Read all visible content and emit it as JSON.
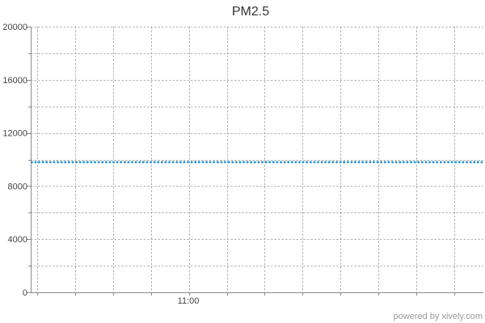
{
  "chart_data": {
    "type": "line",
    "title": "PM2.5",
    "xlabel": "",
    "ylabel": "",
    "ylim": [
      0,
      20000
    ],
    "y_ticks": [
      0,
      4000,
      8000,
      12000,
      16000,
      20000
    ],
    "x_tick_labels": [
      "11:00"
    ],
    "grid": true,
    "series": [
      {
        "color": "#2b93d1",
        "values": [
          9800,
          9800
        ]
      }
    ]
  },
  "footer": {
    "text": "powered by xively.com"
  }
}
